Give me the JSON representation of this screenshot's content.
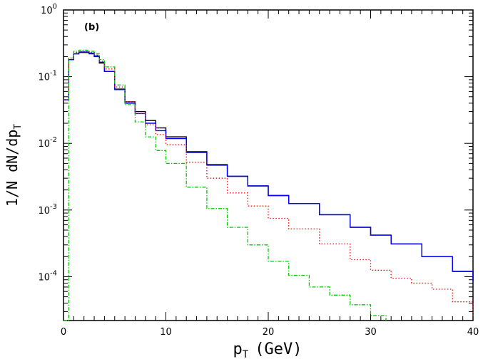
{
  "chart_data": {
    "type": "line",
    "panel_label": "(b)",
    "xlabel": {
      "main": "p",
      "sub": "T",
      "rest": "(GeV)"
    },
    "ylabel": {
      "main": "1/N dN/dp",
      "sub": "T"
    },
    "xlim": [
      0,
      40
    ],
    "ylim": [
      2.2e-05,
      1
    ],
    "yscale": "log",
    "x_ticks": [
      "0",
      "10",
      "20",
      "30",
      "40"
    ],
    "y_ticks": [
      {
        "base": "10",
        "exp": "0",
        "value": 1
      },
      {
        "base": "10",
        "exp": "-1",
        "value": 0.1
      },
      {
        "base": "10",
        "exp": "-2",
        "value": 0.01
      },
      {
        "base": "10",
        "exp": "-3",
        "value": 0.001
      },
      {
        "base": "10",
        "exp": "-4",
        "value": 0.0001
      }
    ],
    "grid": false,
    "series": [
      {
        "color": "#000000",
        "style": "solid",
        "x": [
          0,
          0.5,
          1,
          1.5,
          2,
          2.5,
          3,
          3.5,
          4,
          5,
          6,
          7,
          8,
          9,
          10,
          12,
          14,
          16,
          18,
          20,
          22,
          25,
          28,
          30,
          32,
          35,
          38,
          40
        ],
        "values": [
          0.045,
          0.18,
          0.22,
          0.23,
          0.23,
          0.22,
          0.2,
          0.16,
          0.12,
          0.065,
          0.042,
          0.03,
          0.022,
          0.017,
          0.0125,
          0.0075,
          0.0048,
          0.0032,
          0.0023,
          0.00165,
          0.00125,
          0.00085,
          0.00055,
          0.00042,
          0.00031,
          0.0002,
          0.00012,
          8.5e-05
        ]
      },
      {
        "color": "#0000ff",
        "style": "solid",
        "x": [
          0,
          0.5,
          1,
          1.5,
          2,
          2.5,
          3,
          3.5,
          4,
          5,
          6,
          7,
          8,
          9,
          10,
          12,
          14,
          16,
          18,
          20,
          22,
          25,
          28,
          30,
          32,
          35,
          38,
          40
        ],
        "values": [
          0.045,
          0.18,
          0.22,
          0.235,
          0.235,
          0.225,
          0.205,
          0.165,
          0.12,
          0.064,
          0.04,
          0.028,
          0.02,
          0.0155,
          0.0118,
          0.0073,
          0.0047,
          0.0032,
          0.0023,
          0.00165,
          0.00125,
          0.00085,
          0.00055,
          0.00042,
          0.00031,
          0.0002,
          0.00012,
          8.5e-05
        ]
      },
      {
        "color": "#ff0000",
        "style": "dotted",
        "x": [
          0,
          0.5,
          1,
          1.5,
          2,
          2.5,
          3,
          3.5,
          4,
          5,
          6,
          7,
          8,
          9,
          10,
          12,
          14,
          16,
          18,
          20,
          22,
          25,
          28,
          30,
          32,
          34,
          36,
          38,
          40
        ],
        "values": [
          0.045,
          0.19,
          0.23,
          0.24,
          0.24,
          0.23,
          0.21,
          0.17,
          0.13,
          0.07,
          0.042,
          0.028,
          0.019,
          0.0135,
          0.0095,
          0.0052,
          0.003,
          0.0018,
          0.00115,
          0.00075,
          0.00052,
          0.00031,
          0.00018,
          0.000125,
          9.5e-05,
          8e-05,
          6.5e-05,
          4.2e-05,
          2.5e-05
        ]
      },
      {
        "color": "#00cc00",
        "style": "dashdot",
        "x": [
          0,
          0.5,
          1,
          1.5,
          2,
          2.5,
          3,
          3.5,
          4,
          5,
          6,
          7,
          8,
          9,
          10,
          12,
          14,
          16,
          18,
          20,
          22,
          24,
          26,
          28,
          30,
          31.5
        ],
        "values": [
          2.2e-05,
          0.19,
          0.24,
          0.25,
          0.25,
          0.24,
          0.22,
          0.18,
          0.14,
          0.075,
          0.038,
          0.021,
          0.0125,
          0.0078,
          0.005,
          0.0022,
          0.00105,
          0.00055,
          0.0003,
          0.00017,
          0.000105,
          7e-05,
          5.3e-05,
          3.8e-05,
          2.6e-05,
          2.2e-05
        ]
      }
    ]
  }
}
